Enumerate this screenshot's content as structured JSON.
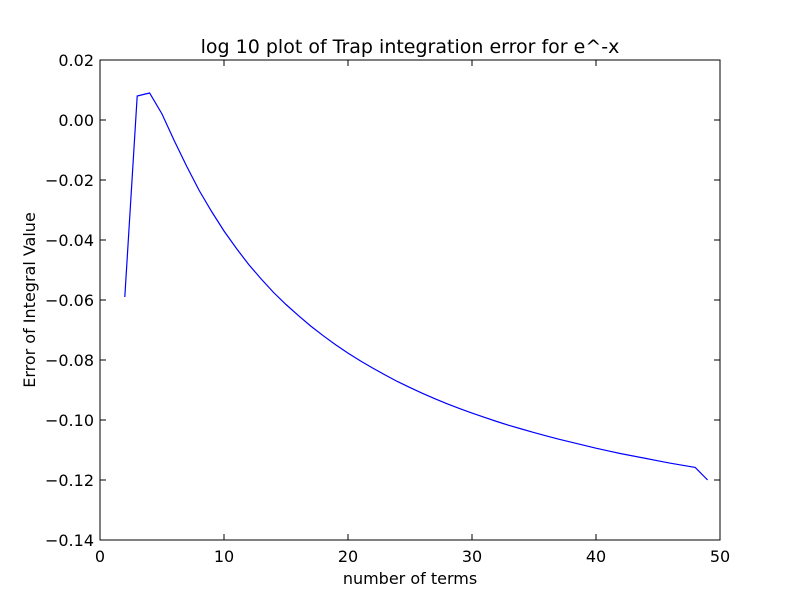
{
  "chart_data": {
    "type": "line",
    "title": "log 10 plot of Trap integration error for e^-x",
    "xlabel": "number of terms",
    "ylabel": "Error of Integral Value",
    "xlim": [
      0,
      50
    ],
    "ylim": [
      -0.14,
      0.02
    ],
    "xticks": [
      0,
      10,
      20,
      30,
      40,
      50
    ],
    "xtick_labels": [
      "0",
      "10",
      "20",
      "30",
      "40",
      "50"
    ],
    "yticks": [
      0.02,
      0.0,
      -0.02,
      -0.04,
      -0.06,
      -0.08,
      -0.1,
      -0.12,
      -0.14
    ],
    "ytick_labels": [
      "0.02",
      "0.00",
      "−0.02",
      "−0.04",
      "−0.06",
      "−0.08",
      "−0.10",
      "−0.12",
      "−0.14"
    ],
    "grid": false,
    "series": [
      {
        "color": "#0000ff",
        "x": [
          2,
          3,
          4,
          5,
          6,
          7,
          8,
          9,
          10,
          11,
          12,
          13,
          14,
          15,
          16,
          17,
          18,
          19,
          20,
          21,
          22,
          23,
          24,
          25,
          26,
          27,
          28,
          29,
          30,
          31,
          32,
          33,
          34,
          35,
          36,
          37,
          38,
          39,
          40,
          41,
          42,
          43,
          44,
          45,
          46,
          47,
          48,
          49
        ],
        "y": [
          -0.059,
          0.008,
          0.009,
          0.002,
          -0.007,
          -0.0155,
          -0.0235,
          -0.0305,
          -0.037,
          -0.0428,
          -0.0482,
          -0.053,
          -0.0575,
          -0.0615,
          -0.0652,
          -0.0687,
          -0.0719,
          -0.0749,
          -0.0777,
          -0.0803,
          -0.0827,
          -0.085,
          -0.0872,
          -0.0892,
          -0.0911,
          -0.0929,
          -0.0946,
          -0.0962,
          -0.0977,
          -0.0991,
          -0.1005,
          -0.1018,
          -0.103,
          -0.1042,
          -0.1053,
          -0.1064,
          -0.1074,
          -0.1084,
          -0.1094,
          -0.1103,
          -0.1112,
          -0.112,
          -0.1128,
          -0.1136,
          -0.1144,
          -0.1151,
          -0.1158,
          -0.12
        ]
      }
    ]
  }
}
